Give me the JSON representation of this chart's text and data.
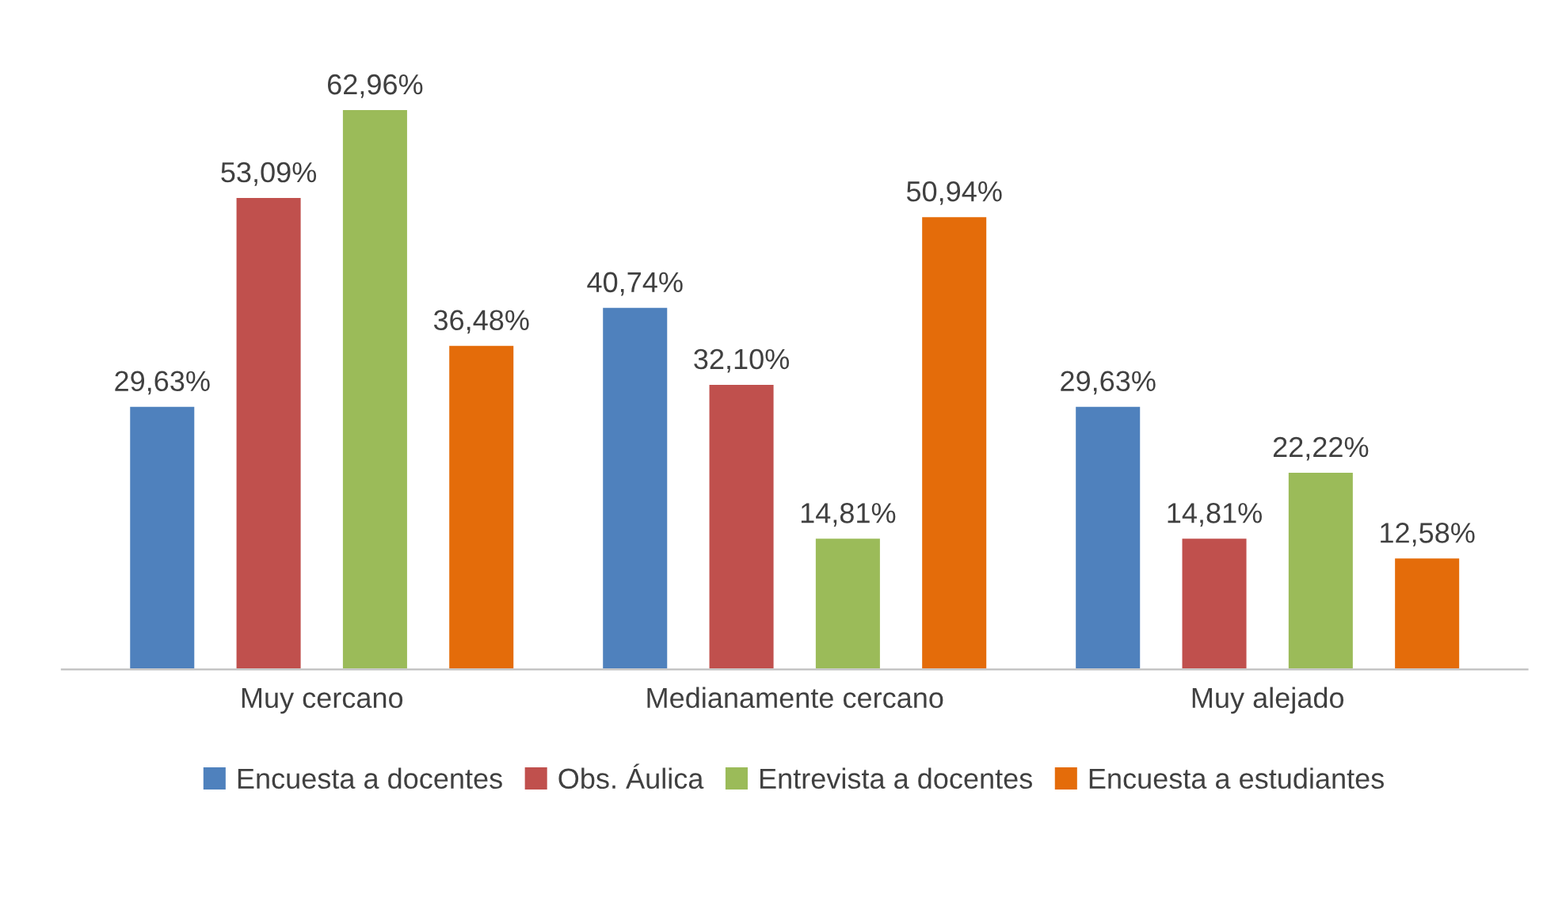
{
  "chart_data": {
    "type": "bar",
    "categories": [
      "Muy cercano",
      "Medianamente cercano",
      "Muy alejado"
    ],
    "series": [
      {
        "name": "Encuesta a docentes",
        "color": "#4f81bd",
        "values": [
          29.63,
          40.74,
          29.63
        ],
        "value_labels": [
          "29,63%",
          "40,74%",
          "29,63%"
        ]
      },
      {
        "name": "Obs. Áulica",
        "color": "#c0504d",
        "values": [
          53.09,
          32.1,
          14.81
        ],
        "value_labels": [
          "53,09%",
          "32,10%",
          "14,81%"
        ]
      },
      {
        "name": "Entrevista a docentes",
        "color": "#9bbb59",
        "values": [
          62.96,
          14.81,
          22.22
        ],
        "value_labels": [
          "62,96%",
          "14,81%",
          "22,22%"
        ]
      },
      {
        "name": "Encuesta a estudiantes",
        "color": "#e46c0a",
        "values": [
          36.48,
          50.94,
          12.58
        ],
        "value_labels": [
          "36,48%",
          "50,94%",
          "12,58%"
        ]
      }
    ],
    "grid": false,
    "legend": "bottom"
  }
}
